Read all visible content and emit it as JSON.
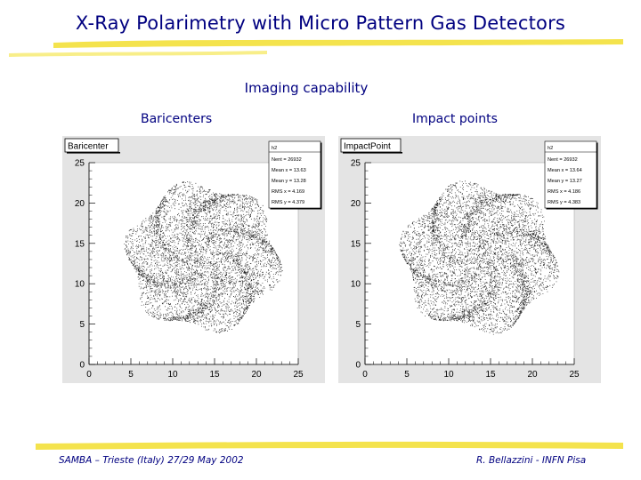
{
  "slide": {
    "title": "X-Ray Polarimetry with Micro Pattern Gas Detectors",
    "subtitle": "Imaging capability",
    "left_label": "Baricenters",
    "right_label": "Impact points",
    "footer_left": "SAMBA – Trieste (Italy) 27/29 May 2002",
    "footer_right": "R. Bellazzini - INFN Pisa",
    "accent_color": "#f2d92a"
  },
  "chart_data": [
    {
      "type": "scatter",
      "title": "Baricenter",
      "xlim": [
        0,
        25
      ],
      "ylim": [
        0,
        25
      ],
      "xticks": [
        "0",
        "5",
        "10",
        "15",
        "20",
        "25"
      ],
      "yticks": [
        "0",
        "5",
        "10",
        "15",
        "20",
        "25"
      ],
      "stats_box": {
        "name": "h2",
        "entries": [
          "Nent = 26932",
          "Mean x = 13.63",
          "Mean y = 13.28",
          "RMS x = 4.169",
          "RMS y = 4.379"
        ]
      },
      "center": [
        13.6,
        13.3
      ],
      "radius": 9.3,
      "points": 6000
    },
    {
      "type": "scatter",
      "title": "ImpactPoint",
      "xlim": [
        0,
        25
      ],
      "ylim": [
        0,
        25
      ],
      "xticks": [
        "0",
        "5",
        "10",
        "15",
        "20",
        "25"
      ],
      "yticks": [
        "0",
        "5",
        "10",
        "15",
        "20",
        "25"
      ],
      "stats_box": {
        "name": "h2",
        "entries": [
          "Nent = 26932",
          "Mean x = 13.64",
          "Mean y = 13.27",
          "RMS x = 4.186",
          "RMS y = 4.383"
        ]
      },
      "center": [
        13.6,
        13.3
      ],
      "radius": 9.4,
      "points": 6000
    }
  ]
}
